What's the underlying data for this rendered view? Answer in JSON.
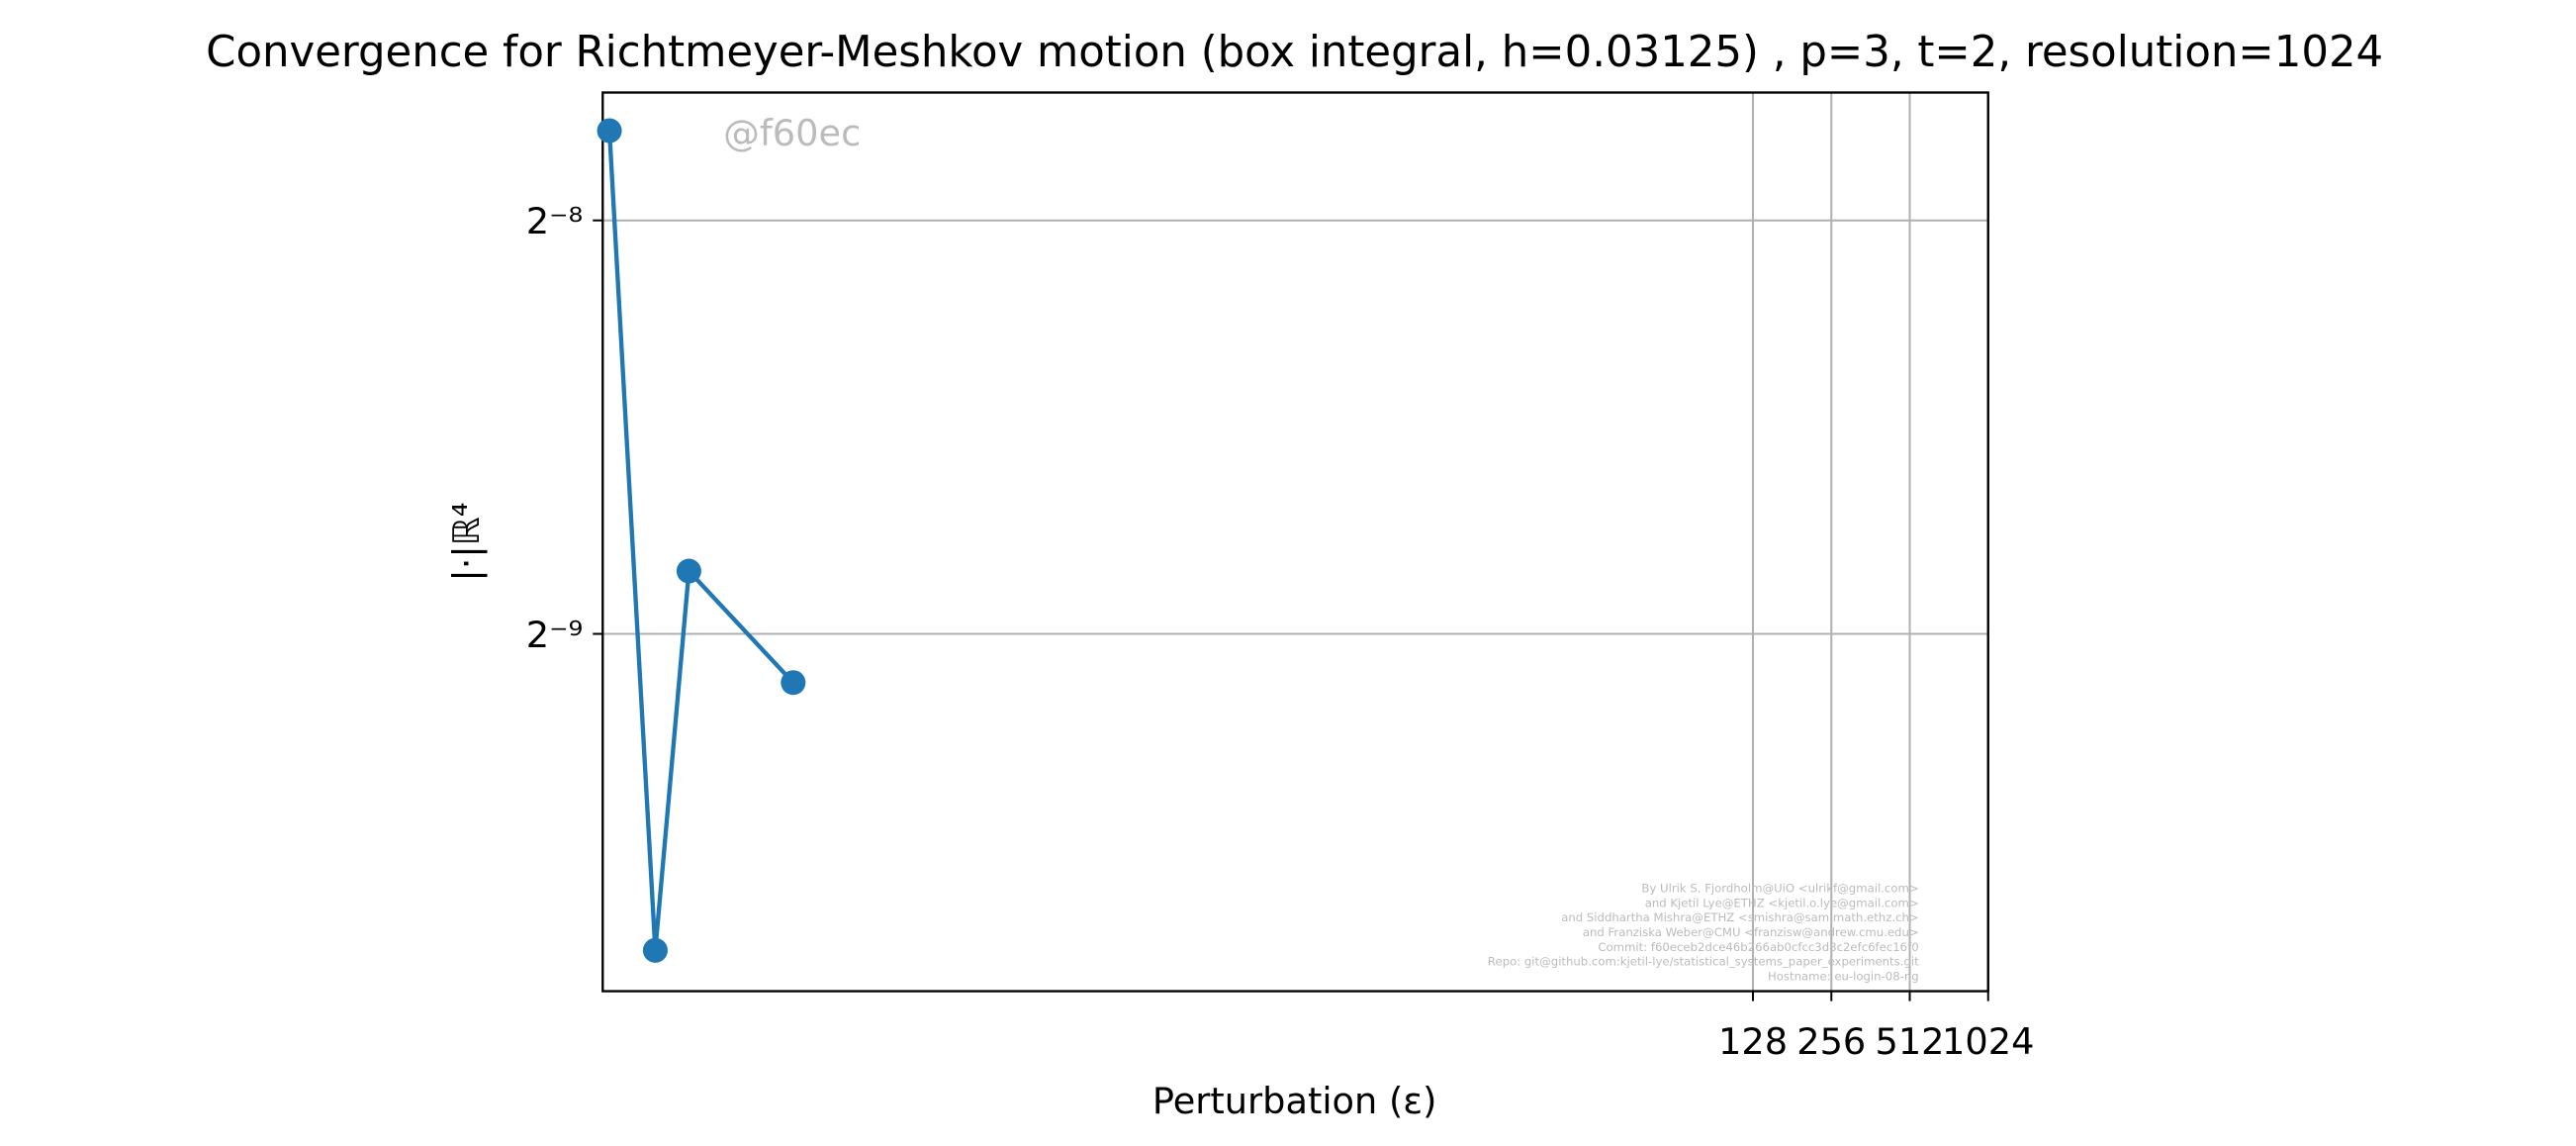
{
  "chart_data": {
    "type": "line",
    "title": "Convergence for Richtmeyer-Meshkov motion (box integral, h=0.03125) , p=3, t=2, resolution=1024",
    "xlabel": "Perturbation (ε)",
    "ylabel": "|·|ℝ⁴",
    "watermark": "@f60ec",
    "credits": [
      "By Ulrik S. Fjordholm@UiO <ulrikf@gmail.com>",
      "and Kjetil Lye@ETHZ <kjetil.o.lye@gmail.com>",
      "and Siddhartha Mishra@ETHZ <smishra@sam.math.ethz.ch>",
      "and Franziska Weber@CMU <franzisw@andrew.cmu.edu>",
      "Commit: f60eceb2dce46b266ab0cfcc3d8c2efc6fec16f0",
      "Repo: git@github.com:kjetil-lye/statistical_systems_paper_experiments.git",
      "Hostname: eu-login-08-ng"
    ],
    "x": [
      0.0052,
      0.0078,
      0.0105,
      0.0264
    ],
    "series": [
      {
        "name": "error",
        "color": "#1f77b4",
        "values": [
          0.00454,
          0.001149,
          0.00217,
          0.0018
        ]
      }
    ],
    "xscale": "log",
    "yscale": "log",
    "grid": true,
    "xlim": [
      0.0049,
      1024
    ],
    "xticks": [
      128,
      256,
      512,
      1024
    ],
    "ylim": [
      0.001073,
      0.00484
    ],
    "yticks": [
      {
        "value": 0.00390625,
        "label": "2⁻⁸"
      },
      {
        "value": 0.001953125,
        "label": "2⁻⁹"
      }
    ]
  }
}
